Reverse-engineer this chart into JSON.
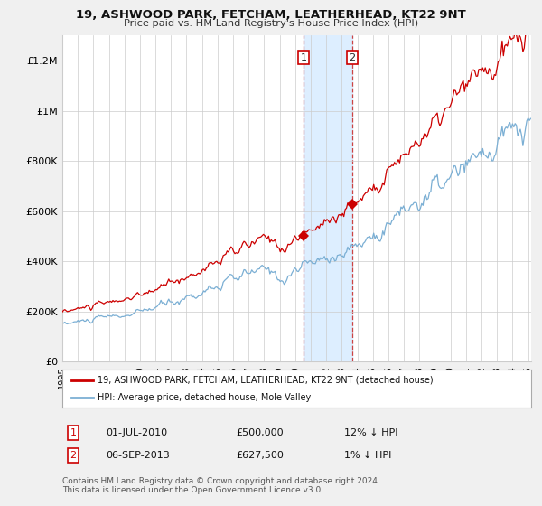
{
  "title": "19, ASHWOOD PARK, FETCHAM, LEATHERHEAD, KT22 9NT",
  "subtitle": "Price paid vs. HM Land Registry's House Price Index (HPI)",
  "bg_color": "#f0f0f0",
  "plot_bg_color": "#ffffff",
  "grid_color": "#cccccc",
  "ylim": [
    0,
    1300000
  ],
  "yticks": [
    0,
    200000,
    400000,
    600000,
    800000,
    1000000,
    1200000
  ],
  "ytick_labels": [
    "£0",
    "£200K",
    "£400K",
    "£600K",
    "£800K",
    "£1M",
    "£1.2M"
  ],
  "sale1_x": 2010.54,
  "sale1_price": 500000,
  "sale2_x": 2013.67,
  "sale2_price": 627500,
  "sale1_date": "01-JUL-2010",
  "sale2_date": "06-SEP-2013",
  "sale1_price_str": "£500,000",
  "sale2_price_str": "£627,500",
  "sale1_hpi": "12% ↓ HPI",
  "sale2_hpi": "1% ↓ HPI",
  "legend_red_label": "19, ASHWOOD PARK, FETCHAM, LEATHERHEAD, KT22 9NT (detached house)",
  "legend_blue_label": "HPI: Average price, detached house, Mole Valley",
  "footer": "Contains HM Land Registry data © Crown copyright and database right 2024.\nThis data is licensed under the Open Government Licence v3.0.",
  "red_color": "#cc0000",
  "blue_color": "#7bafd4",
  "highlight_color": "#ddeeff",
  "xmin": 1995,
  "xmax": 2025.2
}
